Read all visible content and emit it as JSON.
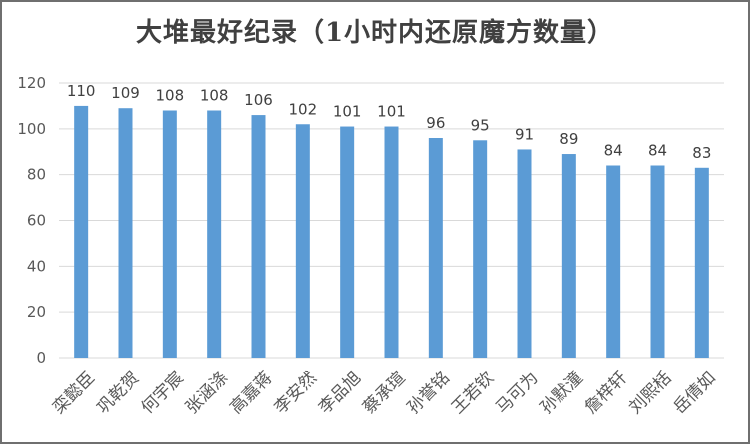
{
  "chart_data": {
    "type": "bar",
    "title": "大堆最好纪录（1小时内还原魔方数量）",
    "xlabel": "",
    "ylabel": "",
    "ylim": [
      0,
      120
    ],
    "yticks": [
      "0",
      "20",
      "40",
      "60",
      "80",
      "100",
      "120"
    ],
    "categories": [
      "栾懿臣",
      "巩乾贺",
      "何宇宸",
      "张涵涤",
      "高嘉蒋",
      "李安然",
      "李品旭",
      "蔡承瑄",
      "孙誉铭",
      "王若钦",
      "马可为",
      "孙默潼",
      "詹梓轩",
      "刘熙栝",
      "岳倩如"
    ],
    "values": [
      110,
      109,
      108,
      108,
      106,
      102,
      101,
      101,
      96,
      95,
      91,
      89,
      84,
      84,
      83
    ],
    "grid": true,
    "legend": "none",
    "bar_color": "#5b9bd5"
  }
}
